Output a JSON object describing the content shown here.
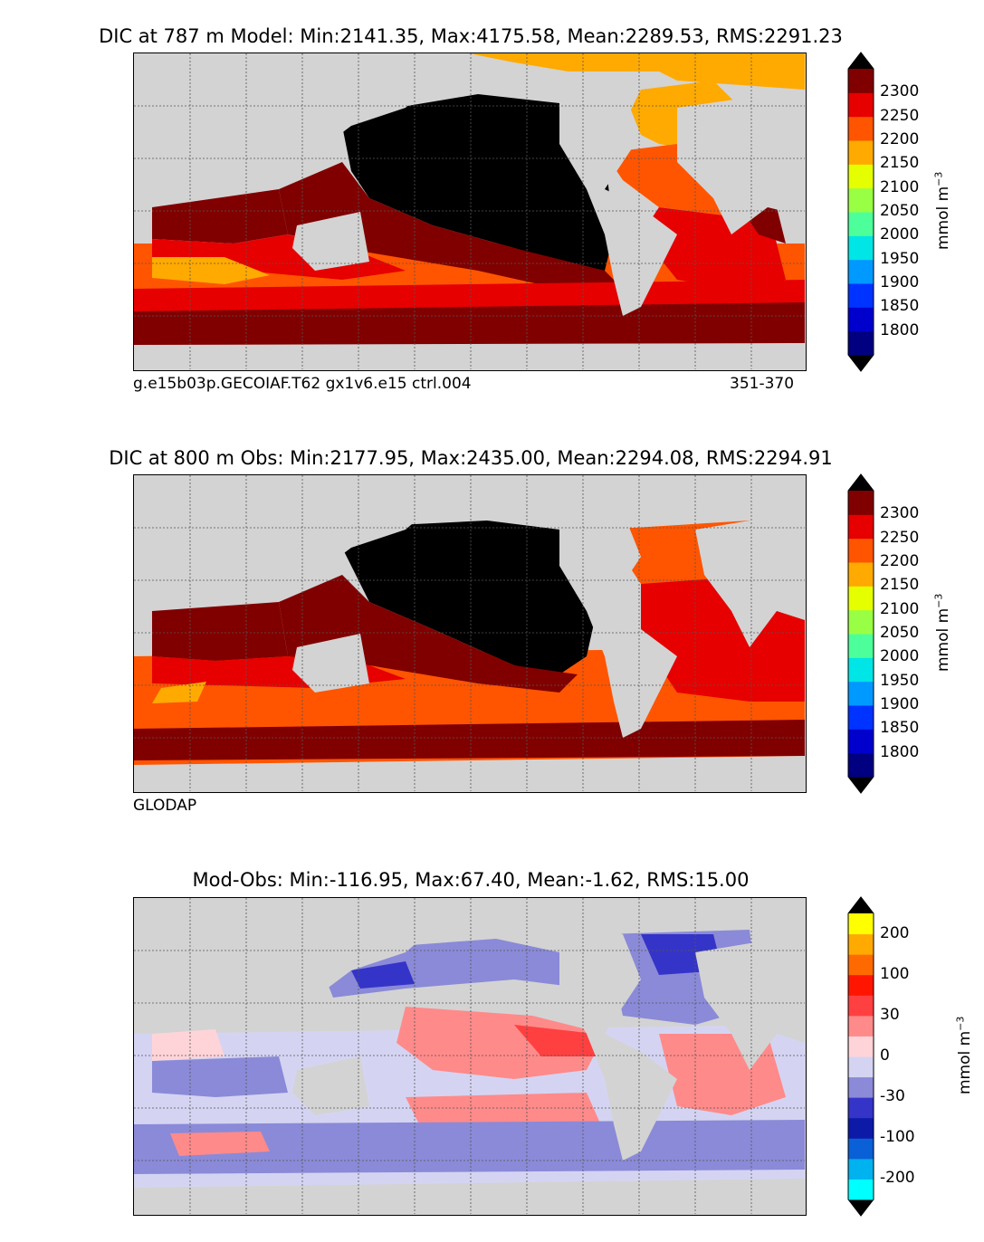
{
  "panels": [
    {
      "title": "DIC at 787 m Model: Min:2141.35, Max:4175.58, Mean:2289.53, RMS:2291.23",
      "footer_left": "g.e15b03p.GECOIAF.T62 gx1v6.e15 ctrl.004",
      "footer_right": "351-370",
      "colorbar": {
        "unit": "mmol m",
        "unit_exp": "−3",
        "ticks": [
          "2300",
          "2250",
          "2200",
          "2150",
          "2100",
          "2050",
          "2000",
          "1950",
          "1900",
          "1850",
          "1800"
        ],
        "colors": [
          "#000080",
          "#0000cd",
          "#0033ff",
          "#0099ff",
          "#00e5e5",
          "#4dff9a",
          "#99ff44",
          "#e5ff00",
          "#ffaa00",
          "#ff5500",
          "#e60000",
          "#800000"
        ],
        "extend_low": "#000000",
        "extend_high": "#000000"
      }
    },
    {
      "title": "DIC at 800 m Obs: Min:2177.95, Max:2435.00, Mean:2294.08, RMS:2294.91",
      "footer_left": "GLODAP",
      "footer_right": "",
      "colorbar": {
        "unit": "mmol m",
        "unit_exp": "−3",
        "ticks": [
          "2300",
          "2250",
          "2200",
          "2150",
          "2100",
          "2050",
          "2000",
          "1950",
          "1900",
          "1850",
          "1800"
        ],
        "colors": [
          "#000080",
          "#0000cd",
          "#0033ff",
          "#0099ff",
          "#00e5e5",
          "#4dff9a",
          "#99ff44",
          "#e5ff00",
          "#ffaa00",
          "#ff5500",
          "#e60000",
          "#800000"
        ],
        "extend_low": "#000000",
        "extend_high": "#000000"
      }
    },
    {
      "title": "Mod-Obs: Min:-116.95, Max:67.40, Mean:-1.62, RMS:15.00",
      "footer_left": "",
      "footer_right": "",
      "colorbar": {
        "unit": "mmol m",
        "unit_exp": "−3",
        "ticks": [
          "200",
          "100",
          "30",
          "0",
          "-30",
          "-100",
          "-200"
        ],
        "colors": [
          "#00ffff",
          "#00b2ee",
          "#0a60d6",
          "#0d1aa8",
          "#3434c8",
          "#8a8ad8",
          "#d4d4f2",
          "#ffd4d8",
          "#ff8a8a",
          "#ff4040",
          "#ff1500",
          "#ff6a00",
          "#ffaa00",
          "#ffff00"
        ],
        "extend_low": "#000000",
        "extend_high": "#000000"
      }
    }
  ],
  "colors": {
    "land": "#d3d3d3",
    "no_data": "#ffffff",
    "coast": "#000000"
  }
}
